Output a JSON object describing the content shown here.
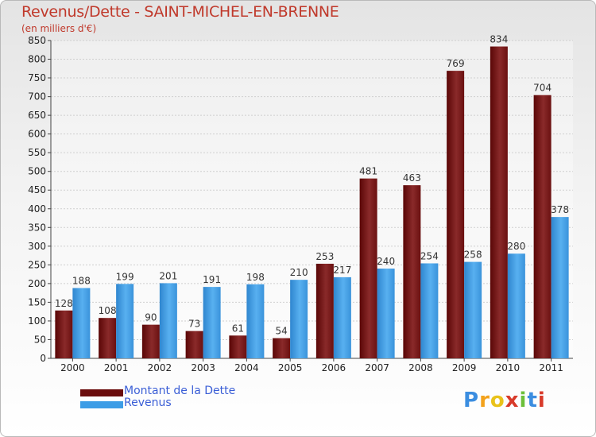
{
  "header": {
    "title": "Revenus/Dette - SAINT-MICHEL-EN-BRENNE",
    "unit_note": "(en milliers d'€)"
  },
  "legend": {
    "items": [
      {
        "label": "Montant de la Dette"
      },
      {
        "label": "Revenus"
      }
    ]
  },
  "logo": {
    "text": "Proxiti"
  },
  "colors": {
    "dette": "#6b0d0d",
    "revenus": "#3d9de6",
    "title": "#c0392b",
    "legend_text": "#3a5ed6"
  },
  "chart_data": {
    "type": "bar",
    "title": "Revenus/Dette - SAINT-MICHEL-EN-BRENNE",
    "ylabel": "(en milliers d'€)",
    "xlabel": "",
    "categories": [
      "2000",
      "2001",
      "2002",
      "2003",
      "2004",
      "2005",
      "2006",
      "2007",
      "2008",
      "2009",
      "2010",
      "2011"
    ],
    "series": [
      {
        "name": "Montant de la Dette",
        "values": [
          128,
          108,
          90,
          73,
          61,
          54,
          253,
          481,
          463,
          769,
          834,
          704
        ]
      },
      {
        "name": "Revenus",
        "values": [
          188,
          199,
          201,
          191,
          198,
          210,
          217,
          240,
          254,
          258,
          280,
          378
        ]
      }
    ],
    "ylim": [
      0,
      850
    ],
    "yticks": [
      0,
      50,
      100,
      150,
      200,
      250,
      300,
      350,
      400,
      450,
      500,
      550,
      600,
      650,
      700,
      750,
      800,
      850
    ],
    "grid": true,
    "legend_position": "bottom-left"
  }
}
